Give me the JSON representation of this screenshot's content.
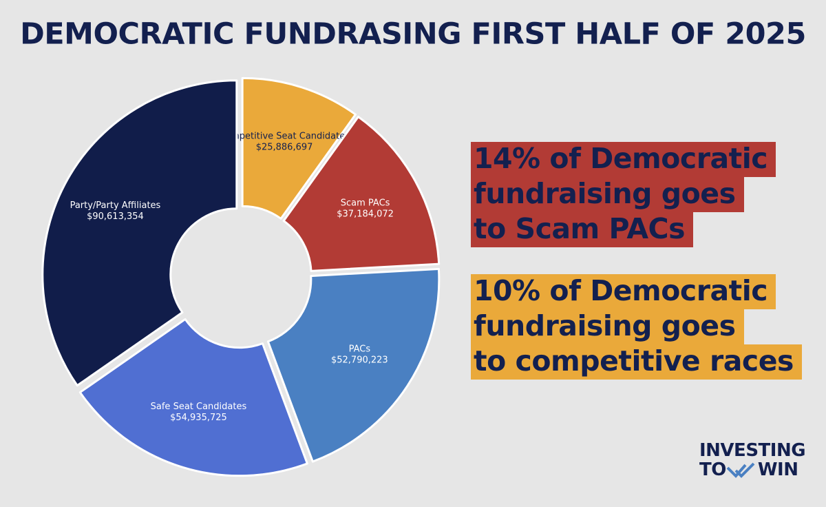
{
  "chart_data": {
    "type": "donut",
    "title": "DEMOCRATIC FUNDRASING FIRST HALF OF 2025",
    "categories": [
      "Competitive Seat Candidates",
      "Scam PACs",
      "PACs",
      "Safe Seat Candidates",
      "Party/Party Affiliates"
    ],
    "values": [
      25886697,
      37184072,
      52790223,
      54935725,
      90613354
    ],
    "value_labels": [
      "$25,886,697",
      "$37,184,072",
      "$52,790,223",
      "$54,935,725",
      "$90,613,354"
    ],
    "colors": [
      "#eaa93a",
      "#b23b35",
      "#4a80c2",
      "#506fd2",
      "#111d4a"
    ]
  },
  "callouts": [
    {
      "lines": [
        "14% of Democratic",
        "fundraising goes",
        "to Scam PACs"
      ],
      "color": "#b23b35"
    },
    {
      "lines": [
        "10% of Democratic",
        "fundraising goes",
        "to competitive races"
      ],
      "color": "#eaa93a"
    }
  ],
  "logo": {
    "lines": [
      "INVESTING",
      "TO",
      "WIN"
    ]
  }
}
